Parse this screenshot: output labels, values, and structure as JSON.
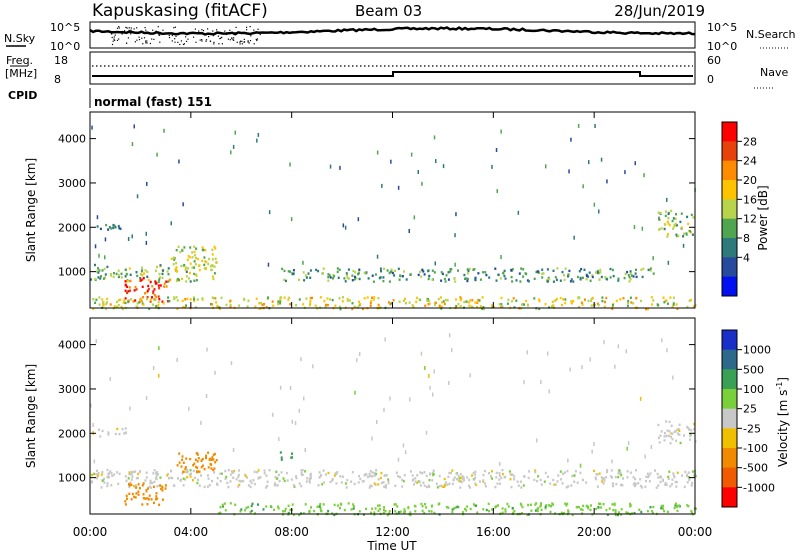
{
  "header": {
    "station": "Kapuskasing (fitACF)",
    "beam": "Beam 03",
    "date": "28/Jun/2019"
  },
  "summary_panels": {
    "nsky_label": "N.Sky",
    "nsearch_label": "N.Search",
    "nsky_ticks": [
      "10^5",
      "10^0"
    ],
    "nsearch_ticks": [
      "10^5",
      "10^0"
    ],
    "freq_label": "Freq.",
    "freq_unit": "[MHz]",
    "freq_ticks": [
      "18",
      "8"
    ],
    "nave_label": "Nave",
    "nave_ticks": [
      "60",
      "0"
    ],
    "cpid_label": "CPID",
    "cpid_text": "normal (fast) 151"
  },
  "time_axis": {
    "label": "Time UT",
    "ticks": [
      "00:00",
      "04:00",
      "08:00",
      "12:00",
      "16:00",
      "20:00",
      "00:00"
    ]
  },
  "range_axis": {
    "label": "Slant Range [km]",
    "ticks": [
      "4000",
      "3000",
      "2000",
      "1000"
    ]
  },
  "power_colorbar": {
    "label": "Power [dB]",
    "ticks": [
      "28",
      "24",
      "20",
      "16",
      "12",
      "8",
      "4"
    ],
    "colors": [
      "#ff0000",
      "#e8420b",
      "#ff8c00",
      "#ffc300",
      "#b7d44a",
      "#50a650",
      "#2e7a7a",
      "#264a9c",
      "#0010f0"
    ]
  },
  "velocity_colorbar": {
    "label": "Velocity [m s",
    "label_superscript": "-1",
    "label_close": "]",
    "ticks": [
      "1000",
      "500",
      "100",
      "25",
      "-25",
      "-100",
      "-500",
      "-1000"
    ],
    "colors": [
      "#1a2ec8",
      "#2c6a8c",
      "#3aa056",
      "#7ad03a",
      "#c8c8c8",
      "#f0c000",
      "#f08a00",
      "#f05a00",
      "#ff0000"
    ]
  },
  "chart_data": [
    {
      "type": "heatmap",
      "title": "Power",
      "xlabel": "Time UT",
      "ylabel": "Slant Range [km]",
      "xlim": [
        "00:00",
        "24:00"
      ],
      "ylim": [
        180,
        4600
      ],
      "colorbar_label": "Power [dB]",
      "colorbar_range": [
        0,
        32
      ],
      "regions": [
        {
          "t_start": 0.2,
          "t_end": 1.4,
          "r_start": 1950,
          "r_end": 2150,
          "value": 8
        },
        {
          "t_start": 0.0,
          "t_end": 5.0,
          "r_start": 800,
          "r_end": 1200,
          "value": 14
        },
        {
          "t_start": 1.3,
          "t_end": 3.2,
          "r_start": 350,
          "r_end": 900,
          "value": 28
        },
        {
          "t_start": 3.2,
          "t_end": 5.0,
          "r_start": 1100,
          "r_end": 1600,
          "value": 16
        },
        {
          "t_start": 7.5,
          "t_end": 22.5,
          "r_start": 800,
          "r_end": 1100,
          "value": 10
        },
        {
          "t_start": 0.0,
          "t_end": 24.0,
          "r_start": 180,
          "r_end": 450,
          "value": 18
        },
        {
          "t_start": 22.5,
          "t_end": 24.0,
          "r_start": 1800,
          "r_end": 2400,
          "value": 14
        }
      ]
    },
    {
      "type": "heatmap",
      "title": "Velocity",
      "xlabel": "Time UT",
      "ylabel": "Slant Range [km]",
      "xlim": [
        "00:00",
        "24:00"
      ],
      "ylim": [
        180,
        4600
      ],
      "colorbar_label": "Velocity [m s-1]",
      "colorbar_range": [
        -1000,
        1000
      ],
      "regions": [
        {
          "t_start": 0.2,
          "t_end": 1.4,
          "r_start": 1950,
          "r_end": 2150,
          "value": 0
        },
        {
          "t_start": 0.0,
          "t_end": 24.0,
          "r_start": 800,
          "r_end": 1200,
          "value": 0
        },
        {
          "t_start": 1.3,
          "t_end": 3.0,
          "r_start": 400,
          "r_end": 900,
          "value": -150
        },
        {
          "t_start": 3.2,
          "t_end": 5.0,
          "r_start": 1100,
          "r_end": 1600,
          "value": -300
        },
        {
          "t_start": 7.5,
          "t_end": 8.0,
          "r_start": 1400,
          "r_end": 1600,
          "value": 300
        },
        {
          "t_start": 5.0,
          "t_end": 24.0,
          "r_start": 180,
          "r_end": 450,
          "value": 80
        },
        {
          "t_start": 22.5,
          "t_end": 24.0,
          "r_start": 1800,
          "r_end": 2300,
          "value": 0
        }
      ]
    }
  ]
}
